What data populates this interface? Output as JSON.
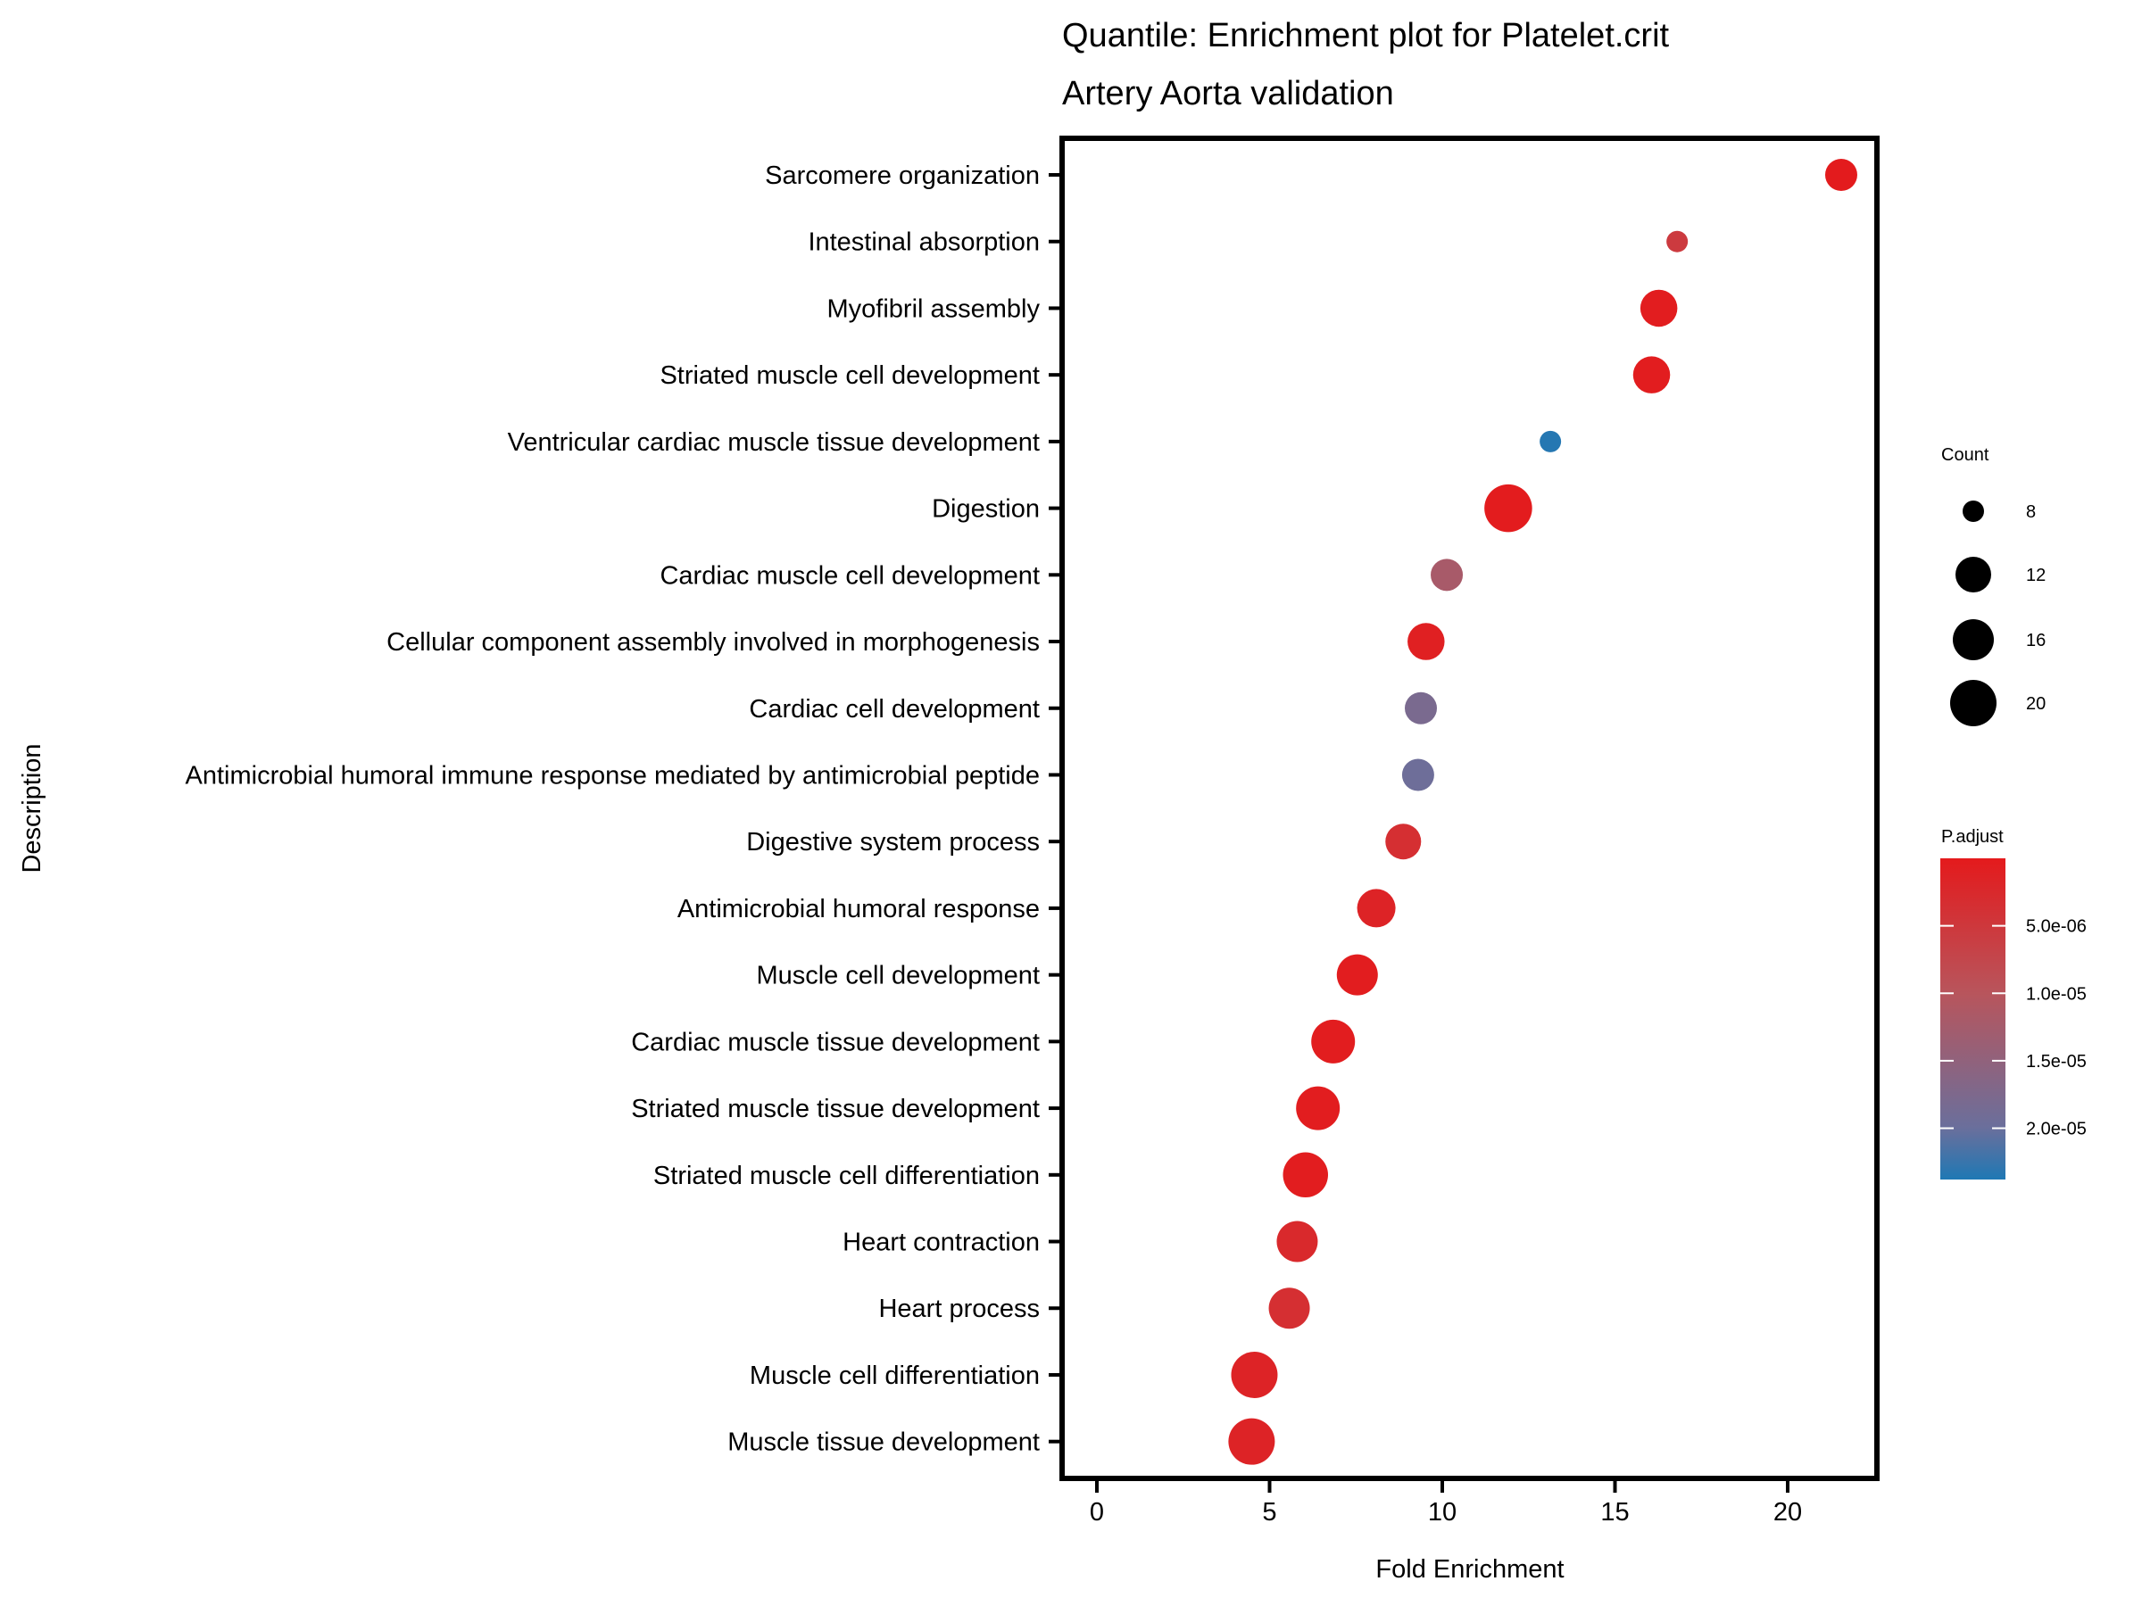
{
  "chart_data": {
    "type": "scatter",
    "title": "Quantile: Enrichment plot for Platelet.crit",
    "subtitle": "Artery Aorta validation",
    "xlabel": "Fold Enrichment",
    "ylabel": "Description",
    "xlim": [
      -1.0,
      22.3
    ],
    "xticks": [
      0,
      5,
      10,
      15,
      20
    ],
    "xtick_labels": [
      "0",
      "5",
      "10",
      "15",
      "20"
    ],
    "grid": false,
    "categories": [
      "Sarcomere organization",
      "Intestinal absorption",
      "Myofibril assembly",
      "Striated muscle cell development",
      "Ventricular cardiac muscle tissue development",
      "Digestion",
      "Cardiac muscle cell development",
      "Cellular component assembly involved in morphogenesis",
      "Cardiac cell development",
      "Antimicrobial humoral immune response mediated by antimicrobial peptide",
      "Digestive system process",
      "Antimicrobial humoral response",
      "Muscle cell development",
      "Cardiac muscle tissue development",
      "Striated muscle tissue development",
      "Striated muscle cell differentiation",
      "Heart contraction",
      "Heart process",
      "Muscle cell differentiation",
      "Muscle tissue development"
    ],
    "fold_enrichment": [
      21.55,
      16.8,
      16.27,
      16.06,
      13.13,
      11.91,
      10.13,
      9.53,
      9.38,
      9.3,
      8.87,
      8.09,
      7.54,
      6.84,
      6.4,
      6.04,
      5.8,
      5.57,
      4.56,
      4.48
    ],
    "count": [
      11,
      8,
      13,
      13,
      8,
      21,
      11,
      13,
      11,
      11,
      12,
      14,
      16,
      18,
      18,
      19,
      16,
      16,
      20,
      20
    ],
    "p_adjust": [
      2e-07,
      5.5e-06,
      5e-07,
      5e-07,
      2.35e-05,
      3e-07,
      1.2e-05,
      1e-06,
      1.8e-05,
      1.95e-05,
      3.5e-06,
      1.5e-06,
      5e-07,
      5e-07,
      5e-07,
      5e-07,
      2.5e-06,
      3.5e-06,
      1.5e-06,
      1.5e-06
    ],
    "legend_size": {
      "title": "Count",
      "values": [
        8,
        12,
        16,
        20
      ],
      "labels": [
        "8",
        "12",
        "16",
        "20"
      ],
      "placement": "right"
    },
    "legend_color": {
      "title": "P.adjust",
      "range": [
        0,
        2.38e-05
      ],
      "ticks": [
        5e-06,
        1e-05,
        1.5e-05,
        2e-05
      ],
      "tick_labels": [
        "5.0e-06",
        "1.0e-05",
        "1.5e-05",
        "2.0e-05"
      ],
      "low_color": "#e41a1c",
      "high_color": "#1f78b4",
      "placement": "right"
    }
  }
}
